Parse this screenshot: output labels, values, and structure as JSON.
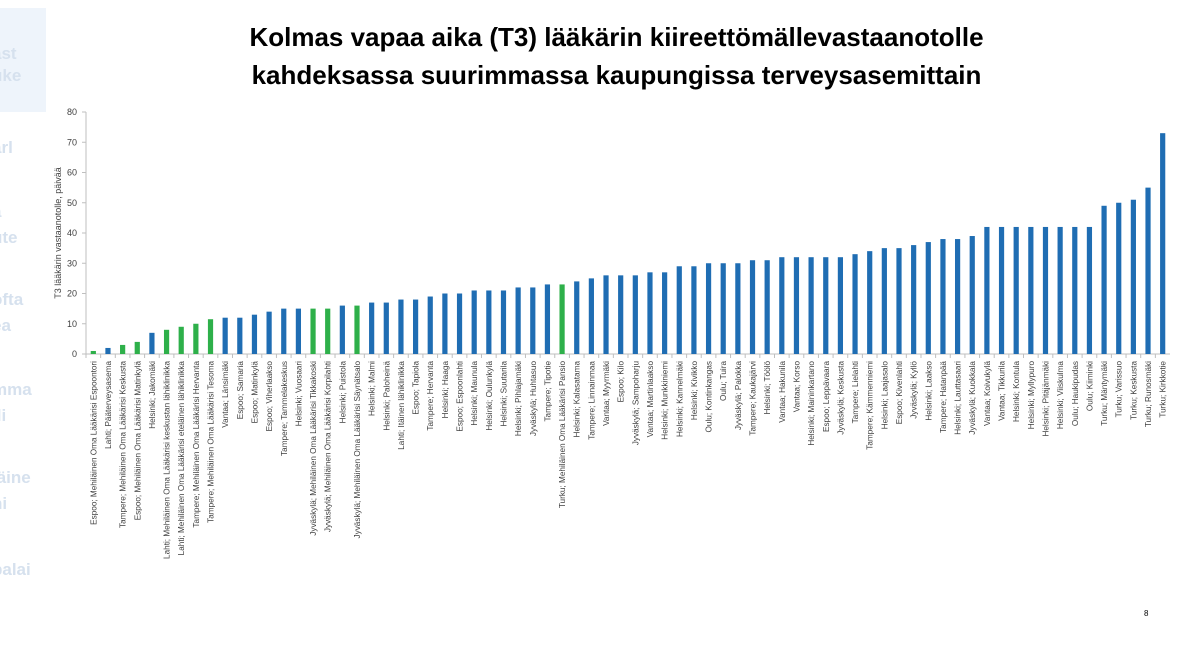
{
  "title_lines": [
    "Kolmas vapaa aika (T3) lääkärin kiireettömällevastaanotolle",
    "kahdeksassa suurimmassa kaupungissa terveysasemittain"
  ],
  "page_number": "8",
  "colors": {
    "default_bar": "#1f6db3",
    "highlight_bar": "#2eb04a",
    "axis": "#bfbfbf",
    "text": "#404040"
  },
  "chart_data": {
    "type": "bar",
    "title": "",
    "ylabel": "T3 lääkärin vastaanotolle, päivää",
    "xlabel": "",
    "ylim": [
      0,
      80
    ],
    "yticks": [
      0,
      10,
      20,
      30,
      40,
      50,
      60,
      70,
      80
    ],
    "grid": false,
    "legend": "none",
    "highlight_note": "green bars mark Mehiläinen Oma Lääkärisi stations",
    "categories": [
      "Espoo; Mehiläinen Oma Lääkärisi Espoontori",
      "Lahti; Pääterveysasema",
      "Tampere; Mehiläinen Oma Lääkärisi Keskusta",
      "Espoo; Mehiläinen Oma Lääkärisi Matinkylä",
      "Helsinki; Jakomäki",
      "Lahti; Mehiläinen Oma Lääkärisi keskustan lähiklinikka",
      "Lahti; Mehiläinen Oma Lääkärisi eteläinen lähiklinikka",
      "Tampere; Mehiläinen Oma Lääkärisi Hervanta",
      "Tampere; Mehiläinen Oma Lääkärisi Tesoma",
      "Vantaa; Länsimäki",
      "Espoo; Samaria",
      "Espoo; Matinkylä",
      "Espoo; Viherlaakso",
      "Tampere; Tammelakeskus",
      "Helsinki; Vuosaari",
      "Jyväskylä; Mehiläinen Oma Lääkärisi Tikkakoski",
      "Jyväskylä; Mehiläinen Oma Lääkärisi Korpilahti",
      "Helsinki; Puistola",
      "Jyväskylä; Mehiläinen Oma Lääkärisi Säynätsalo",
      "Helsinki; Malmi",
      "Helsinki; Paloheinä",
      "Lahti; Itäinen lähiklinikka",
      "Espoo; Tapiola",
      "Tampere; Hervanta",
      "Helsinki; Haaga",
      "Espoo; Espoonlahti",
      "Helsinki; Maunula",
      "Helsinki; Oulunkylä",
      "Helsinki; Suutarila",
      "Helsinki; Pihlajamäki",
      "Jyväskylä; Huhtasuo",
      "Tampere; Tipotie",
      "Turku; Mehiläinen Oma Lääkärisi Pansio",
      "Helsinki; Kalasatama",
      "Tampere; Linnainmaa",
      "Vantaa; Myyrmäki",
      "Espoo; Kilo",
      "Jyväskylä; Sampoharju",
      "Vantaa; Martinlaakso",
      "Helsinki; Munkkiniemi",
      "Helsinki; Kannelmäki",
      "Helsinki; Kivikko",
      "Oulu; Kontinkangas",
      "Oulu; Tuira",
      "Jyväskylä; Palokka",
      "Tampere; Kaukajärvi",
      "Helsinki; Töölö",
      "Vantaa; Hakunila",
      "Vantaa; Korso",
      "Helsinki; Maininkartano",
      "Espoo; Leppävaara",
      "Jyväskylä; Keskusta",
      "Tampere; Lielahti",
      "Tampere; Kämmenniemi",
      "Helsinki; Laajasalo",
      "Espoo; Kivenlahti",
      "Jyväskylä; Kyllö",
      "Helsinki; Laakso",
      "Tampere; Hatanpää",
      "Helsinki; Lauttasaari",
      "Jyväskylä; Kuokkala",
      "Vantaa; Koivukylä",
      "Vantaa; Tikkurila",
      "Helsinki; Kontula",
      "Helsinki; Myllypuro",
      "Helsinki; Pitäjänmäki",
      "Helsinki; Viiskulma",
      "Oulu; Haukipudas",
      "Oulu; Kiiminki",
      "Turku; Mäntymäki",
      "Turku; Varissuo",
      "Turku; Keskusta",
      "Turku; Runosmäki",
      "Turku; Kirkkotie"
    ],
    "values": [
      1,
      2,
      3,
      4,
      7,
      8,
      9,
      10,
      11.5,
      12,
      12,
      13,
      14,
      15,
      15,
      15,
      15,
      16,
      16,
      17,
      17,
      18,
      18,
      19,
      20,
      20,
      21,
      21,
      21,
      22,
      22,
      23,
      23,
      24,
      25,
      26,
      26,
      26,
      27,
      27,
      29,
      29,
      30,
      30,
      30,
      31,
      31,
      32,
      32,
      32,
      32,
      32,
      33,
      34,
      35,
      35,
      36,
      37,
      38,
      38,
      39,
      42,
      42,
      42,
      42,
      42,
      42,
      42,
      42,
      49,
      50,
      51,
      55,
      73
    ],
    "highlighted": [
      true,
      false,
      true,
      true,
      false,
      true,
      true,
      true,
      true,
      false,
      false,
      false,
      false,
      false,
      false,
      true,
      true,
      false,
      true,
      false,
      false,
      false,
      false,
      false,
      false,
      false,
      false,
      false,
      false,
      false,
      false,
      false,
      true,
      false,
      false,
      false,
      false,
      false,
      false,
      false,
      false,
      false,
      false,
      false,
      false,
      false,
      false,
      false,
      false,
      false,
      false,
      false,
      false,
      false,
      false,
      false,
      false,
      false,
      false,
      false,
      false,
      false,
      false,
      false,
      false,
      false,
      false,
      false,
      false,
      false,
      false,
      false,
      false,
      false
    ]
  }
}
